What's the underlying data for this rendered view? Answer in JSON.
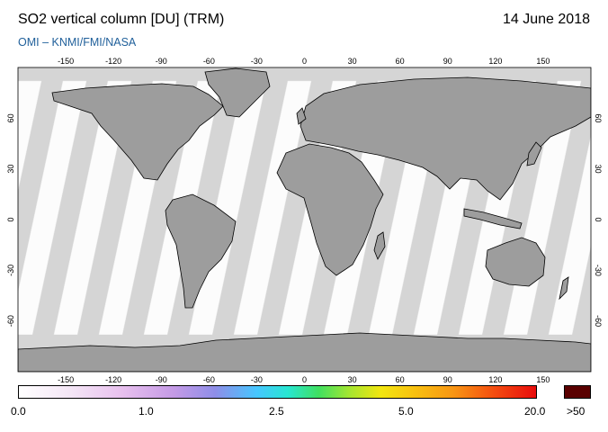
{
  "header": {
    "title": "SO2 vertical column [DU] (TRM)",
    "date": "14 June 2018",
    "credit": "OMI  –  KNMI/FMI/NASA"
  },
  "map": {
    "lon_ticks": [
      "-150",
      "-120",
      "-90",
      "-60",
      "-30",
      "0",
      "30",
      "60",
      "90",
      "120",
      "150"
    ],
    "lat_ticks": [
      "60",
      "30",
      "0",
      "-30",
      "-60"
    ],
    "colors": {
      "background": "#d5d5d5",
      "land": "#9d9d9d",
      "swath": "#fcfcfc",
      "swath_edge": "#eeeeee",
      "coast": "#000000"
    }
  },
  "colorbar": {
    "labels": [
      "0.0",
      "1.0",
      "2.5",
      "5.0",
      "20.0",
      ">50"
    ],
    "over_color": "#5a0000"
  }
}
